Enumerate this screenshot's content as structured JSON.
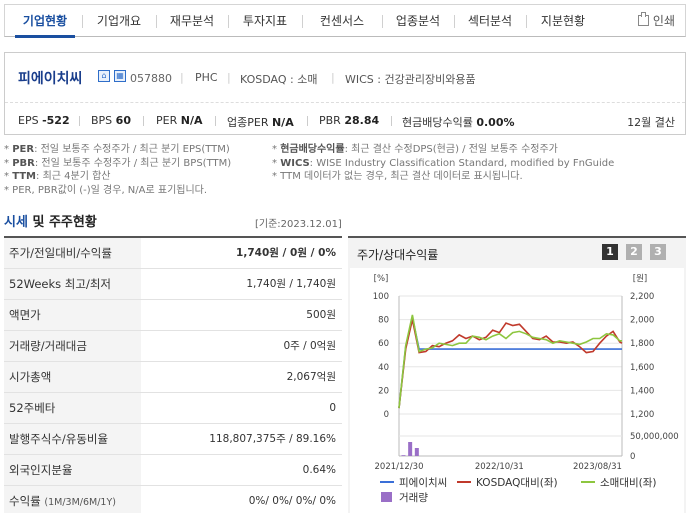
{
  "nav": {
    "tabs": [
      "기업현황",
      "기업개요",
      "재무분석",
      "투자지표",
      "컨센서스",
      "업종분석",
      "섹터분석",
      "지분현황"
    ],
    "print_label": "인쇄"
  },
  "company": {
    "name": "피에이치씨",
    "code": "057880",
    "ticker": "PHC",
    "market": "KOSDAQ : 소매",
    "wics": "WICS : 건강관리장비와용품",
    "icon_1": "home-icon",
    "icon_2": "building-icon"
  },
  "metrics": {
    "eps_label": "EPS",
    "eps_value": "-522",
    "bps_label": "BPS",
    "bps_value": "60",
    "per_label": "PER",
    "per_value": "N/A",
    "iper_label": "업종PER",
    "iper_value": "N/A",
    "pbr_label": "PBR",
    "pbr_value": "28.84",
    "div_label": "현금배당수익률",
    "div_value": "0.00%",
    "settle": "12월 결산"
  },
  "notes": {
    "l1_key": "PER",
    "l1_text": ": 전일 보통주 수정주가 / 최근 분기 EPS(TTM)",
    "l2_key": "PBR",
    "l2_text": ": 전일 보통주 수정주가 / 최근 분기 BPS(TTM)",
    "l3_key": "TTM",
    "l3_text": ": 최근 4분기 합산",
    "l4_text": "* PER, PBR값이 (-)일 경우, N/A로 표기됩니다.",
    "r1_key": "현금배당수익률",
    "r1_text": ": 최근 결산 수정DPS(현금) / 전일 보통주 수정주가",
    "r2_key": "WICS",
    "r2_text": ": WISE Industry Classification Standard, modified by FnGuide",
    "r3_text": "* TTM 데이터가 없는 경우, 최근 결산 데이터로 표시됩니다."
  },
  "section": {
    "title_blue": "시세",
    "title_rest": "및 주주현황",
    "base_date": "[기준:2023.12.01]"
  },
  "table": [
    {
      "label": "주가/전일대비/수익률",
      "value": "1,740원 / 0원 / 0%",
      "bold": true
    },
    {
      "label": "52Weeks 최고/최저",
      "value": "1,740원 / 1,740원"
    },
    {
      "label": "액면가",
      "value": "500원"
    },
    {
      "label": "거래량/거래대금",
      "value": "0주 / 0억원"
    },
    {
      "label": "시가총액",
      "value": "2,067억원"
    },
    {
      "label": "52주베타",
      "value": "0"
    },
    {
      "label": "발행주식수/유동비율",
      "value": "118,807,375주 / 89.16%"
    },
    {
      "label": "외국인지분율",
      "value": "0.64%"
    },
    {
      "label": "수익률",
      "label_small": "(1M/3M/6M/1Y)",
      "value": "0%/ 0%/ 0%/ 0%"
    }
  ],
  "chart_panel": {
    "title": "주가/상대수익률",
    "pages": [
      "1",
      "2",
      "3"
    ],
    "active_page": "1",
    "active_color": "#333333",
    "inactive_color": "#b0b0b0"
  },
  "chart_data": {
    "type": "line",
    "x_tick_labels": [
      "2021/12/30",
      "2022/10/31",
      "2023/08/31"
    ],
    "left_axis": {
      "unit": "[%]",
      "ticks": [
        0,
        20,
        40,
        60,
        80,
        100
      ],
      "ylim": [
        0,
        100
      ]
    },
    "right_axis": {
      "unit": "[원]",
      "ticks": [
        "1,200",
        "1,400",
        "1,600",
        "1,800",
        "2,000",
        "2,200"
      ],
      "ylim": [
        1200,
        2200
      ]
    },
    "volume_axis": {
      "ticks": [
        "0",
        "50,000,000"
      ],
      "ylim": [
        0,
        50000000
      ]
    },
    "x": [
      0,
      3,
      6,
      9,
      12,
      15,
      18,
      21,
      24,
      27,
      30,
      33,
      36,
      39,
      42,
      45,
      48,
      51,
      54,
      57,
      60,
      63,
      66,
      69,
      72,
      75,
      78,
      81,
      84,
      87,
      90,
      93,
      96,
      99,
      100
    ],
    "series": [
      {
        "name": "피에이치씨",
        "color": "#3a6fd8",
        "values": [
          5,
          57,
          82,
          55,
          55,
          55,
          55,
          55,
          55,
          55,
          55,
          55,
          55,
          55,
          55,
          55,
          55,
          55,
          55,
          55,
          55,
          55,
          55,
          55,
          55,
          55,
          55,
          55,
          55,
          55,
          55,
          55,
          55,
          55,
          55
        ]
      },
      {
        "name": "KOSDAQ대비(좌)",
        "color": "#c0392b",
        "values": [
          5,
          55,
          80,
          52,
          53,
          58,
          57,
          60,
          62,
          67,
          64,
          66,
          63,
          65,
          71,
          69,
          77,
          75,
          76,
          70,
          64,
          63,
          66,
          61,
          61,
          60,
          61,
          57,
          52,
          53,
          60,
          66,
          70,
          61,
          60
        ]
      },
      {
        "name": "소매대비(좌)",
        "color": "#8dc63f",
        "values": [
          5,
          58,
          84,
          53,
          55,
          56,
          60,
          59,
          58,
          60,
          60,
          66,
          65,
          63,
          66,
          68,
          64,
          69,
          70,
          68,
          65,
          64,
          63,
          60,
          62,
          61,
          60,
          59,
          61,
          64,
          64,
          68,
          67,
          62,
          62
        ]
      }
    ],
    "volume": {
      "name": "거래량",
      "color": "#9a6fc7",
      "bars": [
        {
          "x": 2,
          "v": 2000000
        },
        {
          "x": 5,
          "v": 35000000
        },
        {
          "x": 8,
          "v": 20000000
        }
      ]
    }
  }
}
